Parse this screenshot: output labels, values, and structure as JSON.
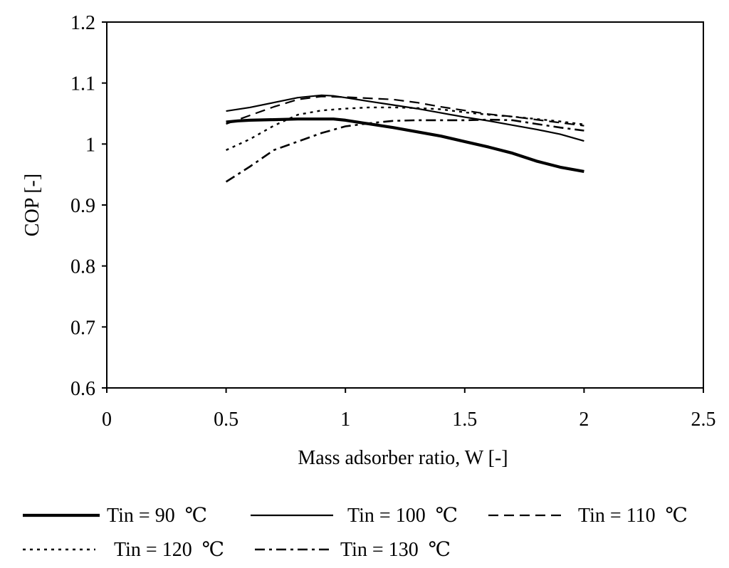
{
  "chart_data": {
    "type": "line",
    "title": "",
    "xlabel": "Mass adsorber ratio, W [-]",
    "ylabel": "COP [-]",
    "xlim": [
      0,
      2.5
    ],
    "ylim": [
      0.6,
      1.2
    ],
    "xticks": [
      0,
      0.5,
      1,
      1.5,
      2,
      2.5
    ],
    "yticks": [
      0.6,
      0.7,
      0.8,
      0.9,
      1.0,
      1.1,
      1.2
    ],
    "xtick_labels": [
      "0",
      "0.5",
      "1",
      "1.5",
      "2",
      "2.5"
    ],
    "ytick_labels": [
      "0.6",
      "0.7",
      "0.8",
      "0.9",
      "1",
      "1.1",
      "1.2"
    ],
    "grid": false,
    "legend_position": "bottom",
    "series": [
      {
        "name": "Tin = 90  ℃",
        "style": "solid-thick",
        "x": [
          0.5,
          0.55,
          0.6,
          0.7,
          0.8,
          0.9,
          0.95,
          1.0,
          1.1,
          1.2,
          1.3,
          1.4,
          1.5,
          1.6,
          1.7,
          1.8,
          1.9,
          2.0
        ],
        "y": [
          1.036,
          1.038,
          1.039,
          1.04,
          1.041,
          1.041,
          1.041,
          1.039,
          1.033,
          1.027,
          1.02,
          1.013,
          1.004,
          0.995,
          0.985,
          0.972,
          0.962,
          0.955
        ]
      },
      {
        "name": "Tin = 100  ℃",
        "style": "solid-thin",
        "x": [
          0.5,
          0.6,
          0.7,
          0.8,
          0.9,
          0.95,
          1.0,
          1.1,
          1.2,
          1.3,
          1.4,
          1.5,
          1.6,
          1.7,
          1.8,
          1.9,
          2.0
        ],
        "y": [
          1.054,
          1.06,
          1.068,
          1.076,
          1.08,
          1.079,
          1.076,
          1.07,
          1.064,
          1.058,
          1.051,
          1.044,
          1.038,
          1.031,
          1.024,
          1.016,
          1.005
        ]
      },
      {
        "name": "Tin = 110  ℃",
        "style": "dashed-long",
        "x": [
          0.5,
          0.6,
          0.7,
          0.8,
          0.9,
          1.0,
          1.1,
          1.2,
          1.3,
          1.4,
          1.5,
          1.6,
          1.7,
          1.8,
          1.9,
          2.0
        ],
        "y": [
          1.033,
          1.047,
          1.061,
          1.073,
          1.078,
          1.077,
          1.075,
          1.073,
          1.068,
          1.061,
          1.055,
          1.049,
          1.045,
          1.04,
          1.035,
          1.03
        ]
      },
      {
        "name": "Tin = 120  ℃",
        "style": "dotted",
        "x": [
          0.5,
          0.6,
          0.7,
          0.8,
          0.9,
          1.0,
          1.1,
          1.2,
          1.3,
          1.4,
          1.5,
          1.6,
          1.7,
          1.8,
          1.9,
          2.0
        ],
        "y": [
          0.99,
          1.008,
          1.03,
          1.048,
          1.055,
          1.058,
          1.06,
          1.06,
          1.059,
          1.057,
          1.052,
          1.048,
          1.045,
          1.041,
          1.037,
          1.032
        ]
      },
      {
        "name": "Tin = 130  ℃",
        "style": "dash-dot",
        "x": [
          0.5,
          0.6,
          0.7,
          0.8,
          0.9,
          1.0,
          1.1,
          1.2,
          1.3,
          1.4,
          1.5,
          1.6,
          1.7,
          1.8,
          1.9,
          2.0
        ],
        "y": [
          0.938,
          0.963,
          0.99,
          1.004,
          1.018,
          1.029,
          1.034,
          1.038,
          1.039,
          1.039,
          1.039,
          1.04,
          1.039,
          1.033,
          1.027,
          1.022
        ]
      }
    ]
  }
}
